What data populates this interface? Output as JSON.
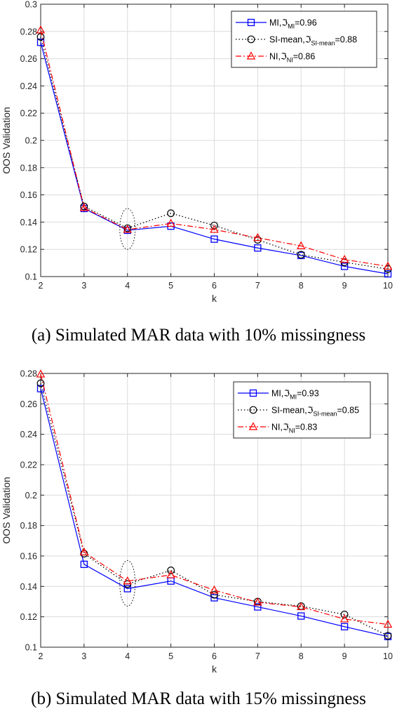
{
  "chart_data": [
    {
      "type": "line",
      "caption": "(a) Simulated MAR data with 10% missingness",
      "xlabel": "k",
      "ylabel": "OOS Validation",
      "x": [
        2,
        3,
        4,
        5,
        6,
        7,
        8,
        9,
        10
      ],
      "xlim": [
        2,
        10
      ],
      "ylim": [
        0.1,
        0.3
      ],
      "yticks": [
        0.1,
        0.12,
        0.14,
        0.16,
        0.18,
        0.2,
        0.22,
        0.24,
        0.26,
        0.28,
        0.3
      ],
      "ytick_labels": [
        "0.1",
        "0.12",
        "0.14",
        "0.16",
        "0.18",
        "0.2",
        "0.22",
        "0.24",
        "0.26",
        "0.28",
        "0.3"
      ],
      "grid": true,
      "legend_position": "top-right",
      "highlight_ellipse": {
        "x": 4,
        "y_min": 0.12,
        "y_max": 0.15
      },
      "series": [
        {
          "name": "MI",
          "metric_symbol": "ℑ",
          "metric_sub": "MI",
          "metric_value": "=0.96",
          "color": "#0000ff",
          "marker": "square",
          "dash": "solid",
          "values": [
            0.272,
            0.15,
            0.134,
            0.137,
            0.1275,
            0.121,
            0.1155,
            0.1075,
            0.102
          ]
        },
        {
          "name": "SI-mean",
          "metric_symbol": "ℑ",
          "metric_sub": "SI-mean",
          "metric_value": "=0.88",
          "color": "#000000",
          "marker": "circle",
          "dash": "dotted",
          "values": [
            0.276,
            0.1515,
            0.1355,
            0.1465,
            0.1375,
            0.127,
            0.116,
            0.1105,
            0.1055
          ]
        },
        {
          "name": "NI",
          "metric_symbol": "ℑ",
          "metric_sub": "NI",
          "metric_value": "=0.86",
          "color": "#ff0000",
          "marker": "triangle",
          "dash": "dashdot",
          "values": [
            0.281,
            0.1505,
            0.1345,
            0.139,
            0.1345,
            0.1285,
            0.1225,
            0.1125,
            0.1075
          ]
        }
      ]
    },
    {
      "type": "line",
      "caption": "(b) Simulated MAR data with 15% missingness",
      "xlabel": "k",
      "ylabel": "OOS Validation",
      "x": [
        2,
        3,
        4,
        5,
        6,
        7,
        8,
        9,
        10
      ],
      "xlim": [
        2,
        10
      ],
      "ylim": [
        0.1,
        0.28
      ],
      "yticks": [
        0.1,
        0.12,
        0.14,
        0.16,
        0.18,
        0.2,
        0.22,
        0.24,
        0.26,
        0.28
      ],
      "ytick_labels": [
        "0.1",
        "0.12",
        "0.14",
        "0.16",
        "0.18",
        "0.2",
        "0.22",
        "0.24",
        "0.26",
        "0.28"
      ],
      "grid": true,
      "legend_position": "top-right",
      "highlight_ellipse": {
        "x": 4,
        "y_min": 0.127,
        "y_max": 0.157
      },
      "series": [
        {
          "name": "MI",
          "metric_symbol": "ℑ",
          "metric_sub": "MI",
          "metric_value": "=0.93",
          "color": "#0000ff",
          "marker": "square",
          "dash": "solid",
          "values": [
            0.27,
            0.1545,
            0.1385,
            0.1435,
            0.1325,
            0.1265,
            0.1205,
            0.1135,
            0.107
          ]
        },
        {
          "name": "SI-mean",
          "metric_symbol": "ℑ",
          "metric_sub": "SI-mean",
          "metric_value": "=0.85",
          "color": "#000000",
          "marker": "circle",
          "dash": "dotted",
          "values": [
            0.2735,
            0.1615,
            0.1415,
            0.1505,
            0.1345,
            0.13,
            0.127,
            0.1215,
            0.1075
          ]
        },
        {
          "name": "NI",
          "metric_symbol": "ℑ",
          "metric_sub": "NI",
          "metric_value": "=0.83",
          "color": "#ff0000",
          "marker": "triangle",
          "dash": "dashdot",
          "values": [
            0.2795,
            0.1625,
            0.1435,
            0.1475,
            0.1375,
            0.1295,
            0.1265,
            0.1185,
            0.115
          ]
        }
      ]
    }
  ]
}
